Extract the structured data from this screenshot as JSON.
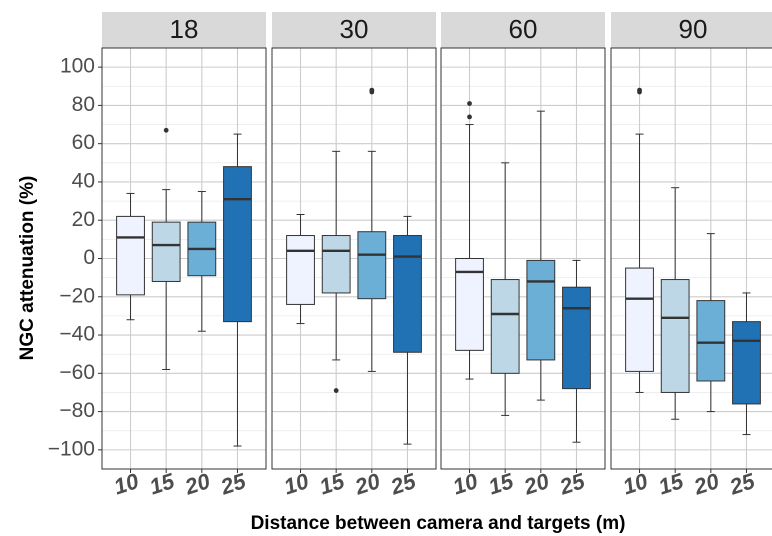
{
  "chart_data": {
    "type": "boxplot",
    "xlabel": "Distance between camera and targets (m)",
    "ylabel": "NGC attenuation (%)",
    "ylim": [
      -110,
      110
    ],
    "yticks": [
      100,
      80,
      60,
      40,
      20,
      0,
      -20,
      -40,
      -60,
      -80,
      -100
    ],
    "ytick_labels": [
      "100",
      "80",
      "60",
      "40",
      "20",
      "0",
      "−20",
      "−40",
      "−60",
      "−80",
      "−100"
    ],
    "categories": [
      "10",
      "15",
      "20",
      "25"
    ],
    "colors": [
      "#eff3ff",
      "#bdd7e7",
      "#6baed6",
      "#2171b5"
    ],
    "grid": true,
    "facets": [
      {
        "label": "18",
        "boxes": [
          {
            "category": "10",
            "whisker_low": -32,
            "q1": -19,
            "median": 11,
            "q3": 22,
            "whisker_high": 34,
            "outliers": []
          },
          {
            "category": "15",
            "whisker_low": -58,
            "q1": -12,
            "median": 7,
            "q3": 19,
            "whisker_high": 36,
            "outliers": [
              67
            ]
          },
          {
            "category": "20",
            "whisker_low": -38,
            "q1": -9,
            "median": 5,
            "q3": 19,
            "whisker_high": 35,
            "outliers": []
          },
          {
            "category": "25",
            "whisker_low": -98,
            "q1": -33,
            "median": 31,
            "q3": 48,
            "whisker_high": 65,
            "outliers": []
          }
        ]
      },
      {
        "label": "30",
        "boxes": [
          {
            "category": "10",
            "whisker_low": -34,
            "q1": -24,
            "median": 4,
            "q3": 12,
            "whisker_high": 23,
            "outliers": []
          },
          {
            "category": "15",
            "whisker_low": -53,
            "q1": -18,
            "median": 4,
            "q3": 12,
            "whisker_high": 56,
            "outliers": [
              -69
            ]
          },
          {
            "category": "20",
            "whisker_low": -59,
            "q1": -21,
            "median": 2,
            "q3": 14,
            "whisker_high": 56,
            "outliers": [
              87,
              88
            ]
          },
          {
            "category": "25",
            "whisker_low": -97,
            "q1": -49,
            "median": 1,
            "q3": 12,
            "whisker_high": 22,
            "outliers": []
          }
        ]
      },
      {
        "label": "60",
        "boxes": [
          {
            "category": "10",
            "whisker_low": -63,
            "q1": -48,
            "median": -7,
            "q3": 0,
            "whisker_high": 70,
            "outliers": [
              74,
              81
            ]
          },
          {
            "category": "15",
            "whisker_low": -82,
            "q1": -60,
            "median": -29,
            "q3": -11,
            "whisker_high": 50,
            "outliers": []
          },
          {
            "category": "20",
            "whisker_low": -74,
            "q1": -53,
            "median": -12,
            "q3": -1,
            "whisker_high": 77,
            "outliers": []
          },
          {
            "category": "25",
            "whisker_low": -96,
            "q1": -68,
            "median": -26,
            "q3": -15,
            "whisker_high": -1,
            "outliers": []
          }
        ]
      },
      {
        "label": "90",
        "boxes": [
          {
            "category": "10",
            "whisker_low": -70,
            "q1": -59,
            "median": -21,
            "q3": -5,
            "whisker_high": 65,
            "outliers": [
              87,
              88
            ]
          },
          {
            "category": "15",
            "whisker_low": -84,
            "q1": -70,
            "median": -31,
            "q3": -11,
            "whisker_high": 37,
            "outliers": []
          },
          {
            "category": "20",
            "whisker_low": -80,
            "q1": -64,
            "median": -44,
            "q3": -22,
            "whisker_high": 13,
            "outliers": []
          },
          {
            "category": "25",
            "whisker_low": -92,
            "q1": -76,
            "median": -43,
            "q3": -33,
            "whisker_high": -18,
            "outliers": []
          }
        ]
      }
    ]
  }
}
